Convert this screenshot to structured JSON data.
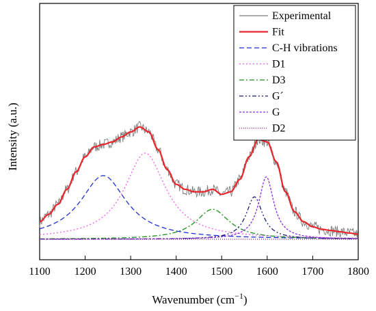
{
  "chart_data": {
    "type": "line",
    "xlabel": "Wavenumber (cm",
    "xlabel_sup": "−1",
    "xlabel_close": ")",
    "ylabel": "Intensity (a.u.)",
    "xlim": [
      1100,
      1800
    ],
    "ylim": [
      0,
      1.05
    ],
    "x_ticks": [
      "1100",
      "1200",
      "1300",
      "1400",
      "1500",
      "1600",
      "1700",
      "1800"
    ],
    "legend_position": "top-right",
    "grid": false,
    "series": [
      {
        "name": "Experimental",
        "color": "#7a7a7a",
        "style": "solid",
        "noisy": true,
        "x": [
          1100,
          1120,
          1140,
          1160,
          1180,
          1200,
          1220,
          1240,
          1260,
          1280,
          1300,
          1320,
          1340,
          1360,
          1380,
          1400,
          1420,
          1440,
          1460,
          1480,
          1500,
          1520,
          1540,
          1560,
          1580,
          1600,
          1620,
          1640,
          1660,
          1680,
          1700,
          1720,
          1740,
          1760,
          1780,
          1800
        ],
        "y": [
          0.07,
          0.1,
          0.14,
          0.2,
          0.27,
          0.33,
          0.37,
          0.38,
          0.39,
          0.41,
          0.43,
          0.45,
          0.43,
          0.36,
          0.28,
          0.22,
          0.2,
          0.19,
          0.19,
          0.2,
          0.18,
          0.19,
          0.24,
          0.33,
          0.4,
          0.39,
          0.31,
          0.19,
          0.11,
          0.07,
          0.05,
          0.04,
          0.035,
          0.03,
          0.025,
          0.02
        ]
      },
      {
        "name": "Fit",
        "color": "#e8262b",
        "style": "solid",
        "width": 2.2,
        "x": [
          1100,
          1120,
          1140,
          1160,
          1180,
          1200,
          1220,
          1240,
          1260,
          1280,
          1300,
          1320,
          1340,
          1360,
          1380,
          1400,
          1420,
          1440,
          1460,
          1480,
          1500,
          1520,
          1540,
          1560,
          1580,
          1600,
          1620,
          1640,
          1660,
          1680,
          1700,
          1720,
          1740,
          1760,
          1780,
          1800
        ],
        "y": [
          0.07,
          0.1,
          0.14,
          0.2,
          0.27,
          0.33,
          0.37,
          0.38,
          0.39,
          0.41,
          0.43,
          0.45,
          0.43,
          0.36,
          0.28,
          0.22,
          0.2,
          0.19,
          0.19,
          0.2,
          0.18,
          0.19,
          0.24,
          0.33,
          0.4,
          0.39,
          0.31,
          0.19,
          0.11,
          0.07,
          0.05,
          0.04,
          0.035,
          0.03,
          0.025,
          0.02
        ]
      },
      {
        "name": "C-H vibrations",
        "color": "#1f2fd6",
        "style": "dash",
        "center": 1240,
        "hwhm": 62,
        "amp": 0.255
      },
      {
        "name": "D1",
        "color": "#f05cf0",
        "style": "dot",
        "center": 1332,
        "hwhm": 55,
        "amp": 0.345
      },
      {
        "name": "D3",
        "color": "#1a8f1a",
        "style": "dashdot",
        "center": 1480,
        "hwhm": 45,
        "amp": 0.12
      },
      {
        "name": "G´",
        "color": "#1a1a6e",
        "style": "dashdotdot",
        "center": 1572,
        "hwhm": 22,
        "amp": 0.17
      },
      {
        "name": "G",
        "color": "#8a2be2",
        "style": "shortdash",
        "center": 1598,
        "hwhm": 20,
        "amp": 0.25
      },
      {
        "name": "D2",
        "color": "#8b1a8b",
        "style": "fine-dot",
        "center": 1620,
        "hwhm": 15,
        "amp": 0.0
      }
    ]
  }
}
